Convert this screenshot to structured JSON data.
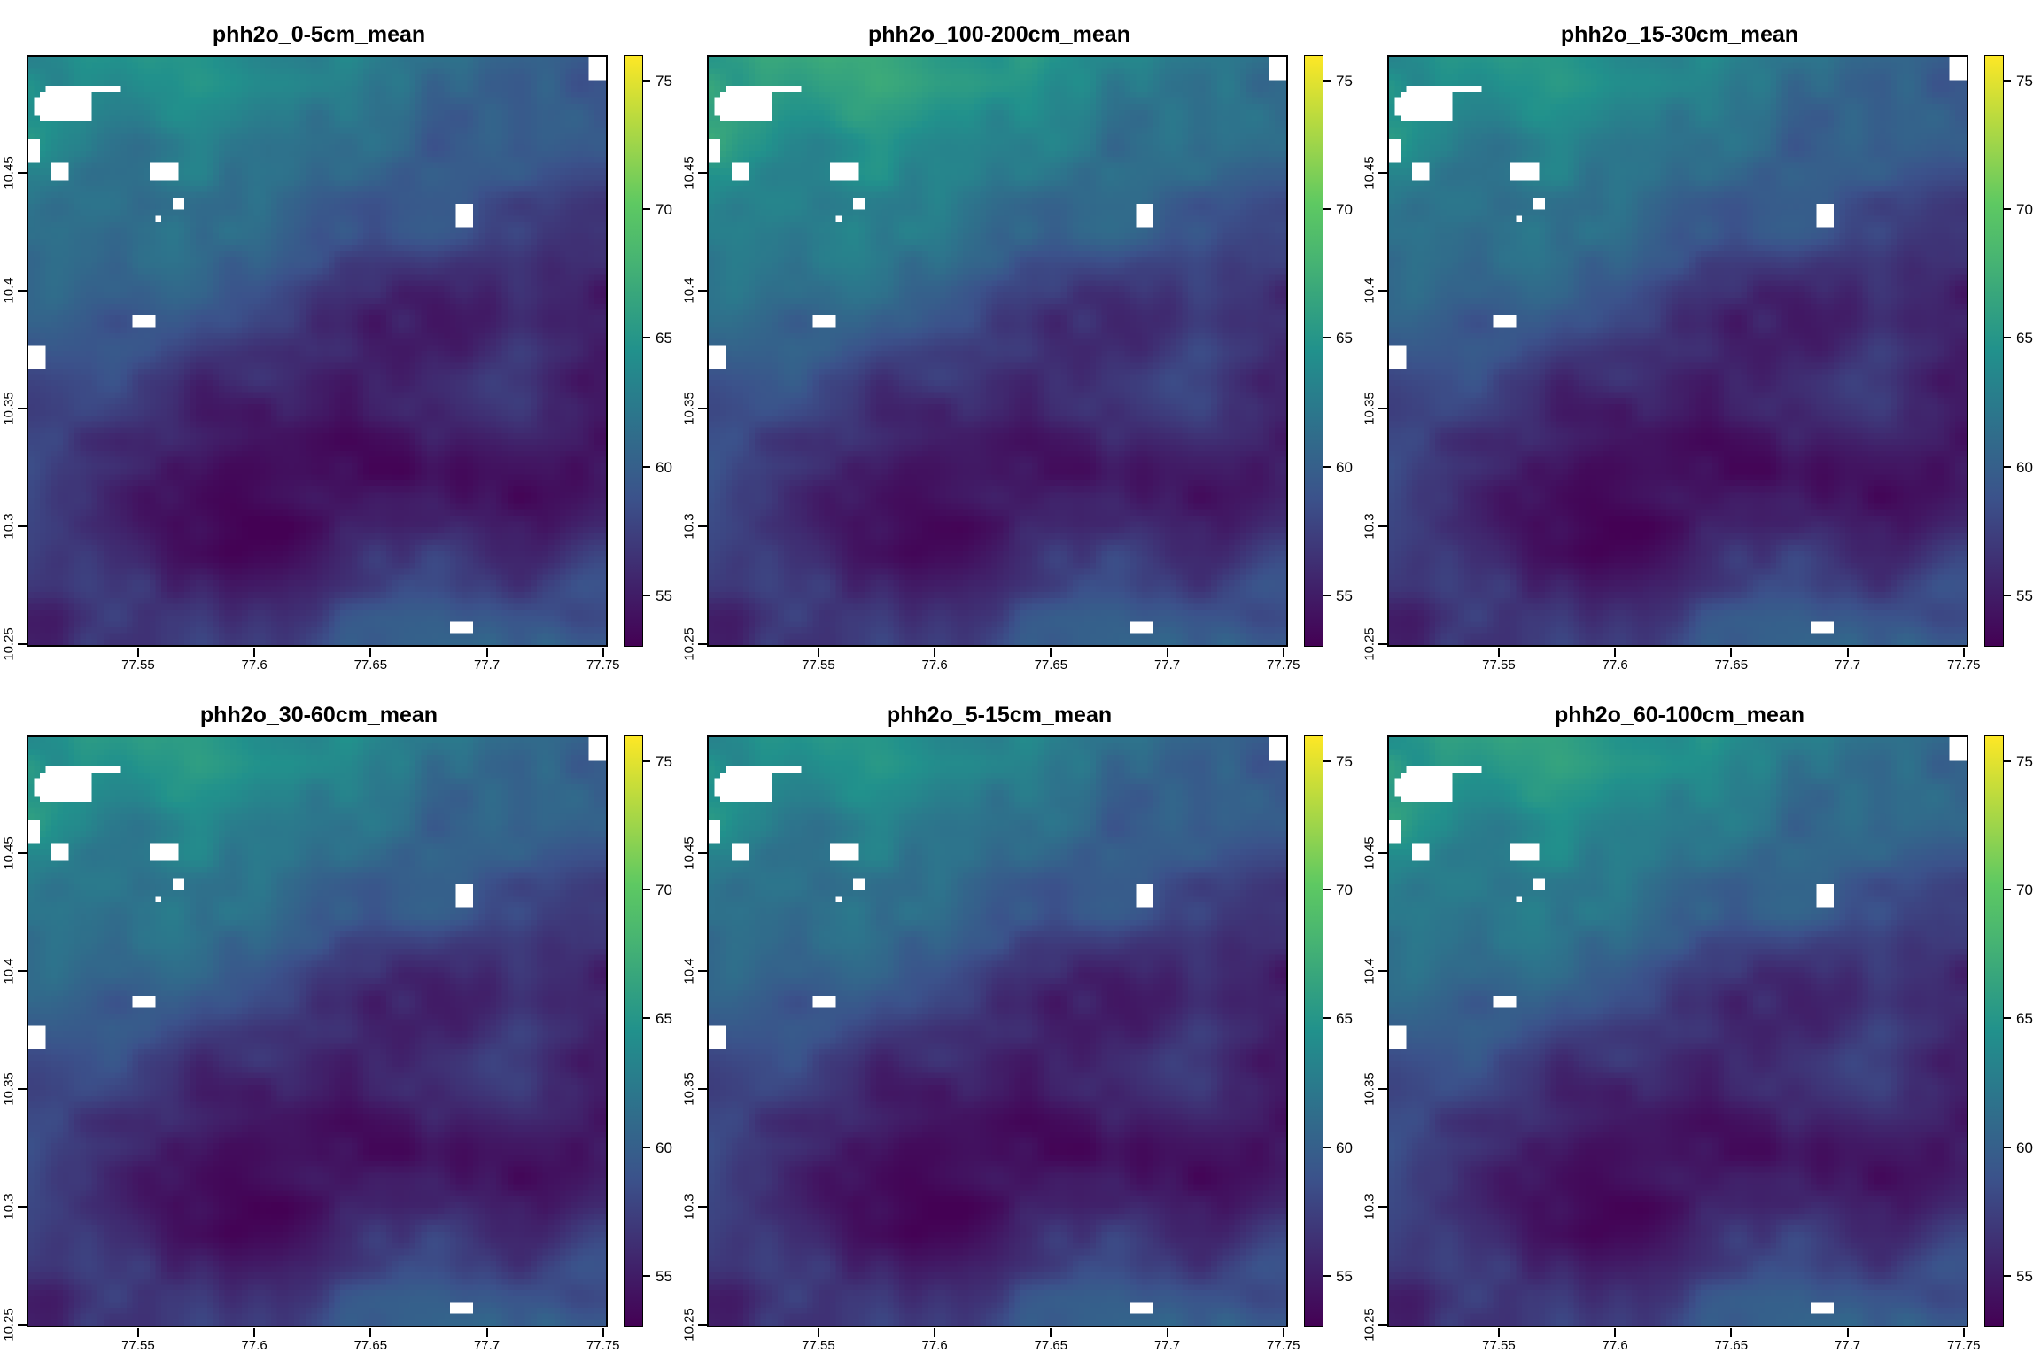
{
  "layout": {
    "rows": 2,
    "cols": 3
  },
  "colormap": "viridis",
  "colormap_stops": [
    "#440154",
    "#3b528b",
    "#21918c",
    "#5ec962",
    "#fde725"
  ],
  "no_data_color": "#ffffff",
  "extent": {
    "xmin": 77.502,
    "xmax": 77.752,
    "ymin": 10.249,
    "ymax": 10.5
  },
  "x_ticks": [
    77.55,
    77.6,
    77.65,
    77.7,
    77.75
  ],
  "x_tick_labels": [
    "77.55",
    "77.6",
    "77.65",
    "77.7",
    "77.75"
  ],
  "y_ticks": [
    10.25,
    10.3,
    10.35,
    10.4,
    10.45
  ],
  "y_tick_labels": [
    "10.25",
    "10.3",
    "10.35",
    "10.4",
    "10.45"
  ],
  "legend": {
    "min": 53,
    "max": 76,
    "ticks": [
      55,
      60,
      65,
      70,
      75
    ],
    "tick_labels": [
      "55",
      "60",
      "65",
      "70",
      "75"
    ]
  },
  "panels": [
    {
      "title": "phh2o_0-5cm_mean",
      "offset": 0
    },
    {
      "title": "phh2o_100-200cm_mean",
      "offset": 2.5
    },
    {
      "title": "phh2o_15-30cm_mean",
      "offset": 0.4
    },
    {
      "title": "phh2o_30-60cm_mean",
      "offset": 0.9
    },
    {
      "title": "phh2o_5-15cm_mean",
      "offset": 0.2
    },
    {
      "title": "phh2o_60-100cm_mean",
      "offset": 1.6
    }
  ]
}
